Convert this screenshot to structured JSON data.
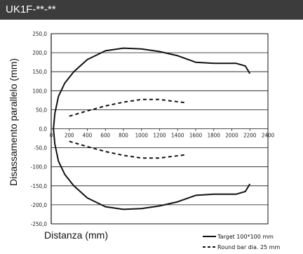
{
  "header": {
    "title": "UK1F-**-**"
  },
  "chart_data": {
    "type": "line",
    "xlabel": "Distanza (mm)",
    "ylabel": "Disassamento parallelo (mm)",
    "xlim": [
      0,
      2400
    ],
    "ylim": [
      -250,
      250
    ],
    "x_ticks": [
      "0",
      "200",
      "400",
      "600",
      "800",
      "1000",
      "1200",
      "1400",
      "1600",
      "1800",
      "2000",
      "2200",
      "2400"
    ],
    "y_ticks": [
      "250,0",
      "200,0",
      "150,0",
      "100,0",
      "50,0",
      "0,0",
      "-50,0",
      "-100,0",
      "-150,0",
      "-200,0",
      "-250,0"
    ],
    "grid": "horizontal",
    "legend_position": "bottom-right",
    "series": [
      {
        "name": "Target 100*100 mm",
        "style": "solid",
        "color": "#111111",
        "points": [
          [
            2200,
            145
          ],
          [
            2150,
            165
          ],
          [
            2050,
            172
          ],
          [
            1800,
            172
          ],
          [
            1600,
            175
          ],
          [
            1400,
            192
          ],
          [
            1200,
            203
          ],
          [
            1000,
            210
          ],
          [
            800,
            212
          ],
          [
            600,
            205
          ],
          [
            400,
            182
          ],
          [
            250,
            150
          ],
          [
            150,
            120
          ],
          [
            80,
            85
          ],
          [
            40,
            40
          ],
          [
            25,
            0
          ],
          [
            40,
            -40
          ],
          [
            80,
            -85
          ],
          [
            150,
            -120
          ],
          [
            250,
            -150
          ],
          [
            400,
            -182
          ],
          [
            600,
            -205
          ],
          [
            800,
            -212
          ],
          [
            1000,
            -210
          ],
          [
            1200,
            -203
          ],
          [
            1400,
            -192
          ],
          [
            1600,
            -175
          ],
          [
            1800,
            -172
          ],
          [
            2050,
            -172
          ],
          [
            2150,
            -165
          ],
          [
            2200,
            -145
          ]
        ]
      },
      {
        "name": "Round bar dia. 25 mm",
        "style": "dashed",
        "color": "#111111",
        "points_upper": [
          [
            200,
            33
          ],
          [
            400,
            47
          ],
          [
            600,
            60
          ],
          [
            800,
            70
          ],
          [
            1000,
            77
          ],
          [
            1200,
            77
          ],
          [
            1500,
            68
          ]
        ],
        "points_lower": [
          [
            200,
            -33
          ],
          [
            400,
            -47
          ],
          [
            600,
            -60
          ],
          [
            800,
            -70
          ],
          [
            1000,
            -77
          ],
          [
            1200,
            -77
          ],
          [
            1500,
            -68
          ]
        ]
      }
    ]
  }
}
